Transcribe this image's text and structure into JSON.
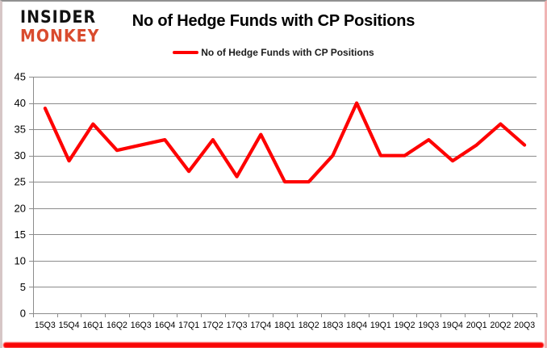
{
  "brand": {
    "line1": "INSIDER",
    "line2": "MONKEY",
    "accent_color": "#d94b2e"
  },
  "header": {
    "title": "No of Hedge Funds with CP Positions"
  },
  "legend": {
    "label": "No of Hedge Funds with CP Positions"
  },
  "chart_data": {
    "type": "line",
    "title": "No of Hedge Funds with CP Positions",
    "categories": [
      "15Q3",
      "15Q4",
      "16Q1",
      "16Q2",
      "16Q3",
      "16Q4",
      "17Q1",
      "17Q2",
      "17Q3",
      "17Q4",
      "18Q1",
      "18Q2",
      "18Q3",
      "18Q4",
      "19Q1",
      "19Q2",
      "19Q3",
      "19Q4",
      "20Q1",
      "20Q2",
      "20Q3"
    ],
    "series": [
      {
        "name": "No of Hedge Funds with CP Positions",
        "color": "#fe0000",
        "values": [
          39,
          29,
          36,
          31,
          32,
          33,
          27,
          33,
          26,
          34,
          25,
          25,
          30,
          40,
          30,
          30,
          33,
          29,
          32,
          36,
          32
        ]
      }
    ],
    "xlabel": "",
    "ylabel": "",
    "ylim": [
      0,
      45
    ],
    "ytick_interval": 5,
    "yticks": [
      0,
      5,
      10,
      15,
      20,
      25,
      30,
      35,
      40,
      45
    ],
    "grid": true,
    "legend_position": "top-center",
    "gridline_color": "#8c8c8c",
    "axis_color": "#8c8c8c",
    "axis_text_color": "#000000",
    "background_color": "#ffffff"
  }
}
